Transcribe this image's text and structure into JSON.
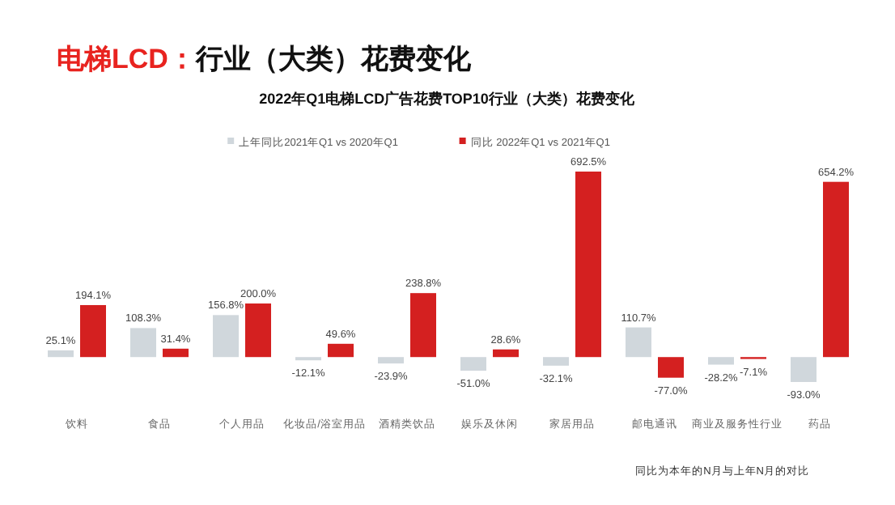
{
  "chart_data": {
    "type": "bar",
    "title": "电梯LCD：行业（大类）花费变化",
    "subtitle": "2022年Q1电梯LCD广告花费TOP10行业（大类）花费变化",
    "categories": [
      "饮料",
      "食品",
      "个人用品",
      "化妆品/浴室用品",
      "酒精类饮品",
      "娱乐及休闲",
      "家居用品",
      "邮电通讯",
      "商业及服务性行业",
      "药品"
    ],
    "series": [
      {
        "name": "上年同比2021年Q1 vs 2020年Q1",
        "color": "#d0d7dc",
        "values": [
          25.1,
          108.3,
          156.8,
          -12.1,
          -23.9,
          -51.0,
          -32.1,
          110.7,
          -28.2,
          -93.0
        ],
        "value_labels": [
          "25.1%",
          "108.3%",
          "156.8%",
          "-12.1%",
          "-23.9%",
          "-51.0%",
          "-32.1%",
          "110.7%",
          "-28.2%",
          "-93.0%"
        ]
      },
      {
        "name": "同比 2022年Q1 vs 2021年Q1",
        "color": "#d42020",
        "values": [
          194.1,
          31.4,
          200.0,
          49.6,
          238.8,
          28.6,
          692.5,
          -77.0,
          -7.1,
          654.2
        ],
        "value_labels": [
          "194.1%",
          "31.4%",
          "200.0%",
          "49.6%",
          "238.8%",
          "28.6%",
          "692.5%",
          "-77.0%",
          "-7.1%",
          "654.2%"
        ]
      }
    ],
    "legend": "top",
    "grid": false,
    "annotations": [
      "同比为本年的N月与上年N月的对比"
    ]
  }
}
